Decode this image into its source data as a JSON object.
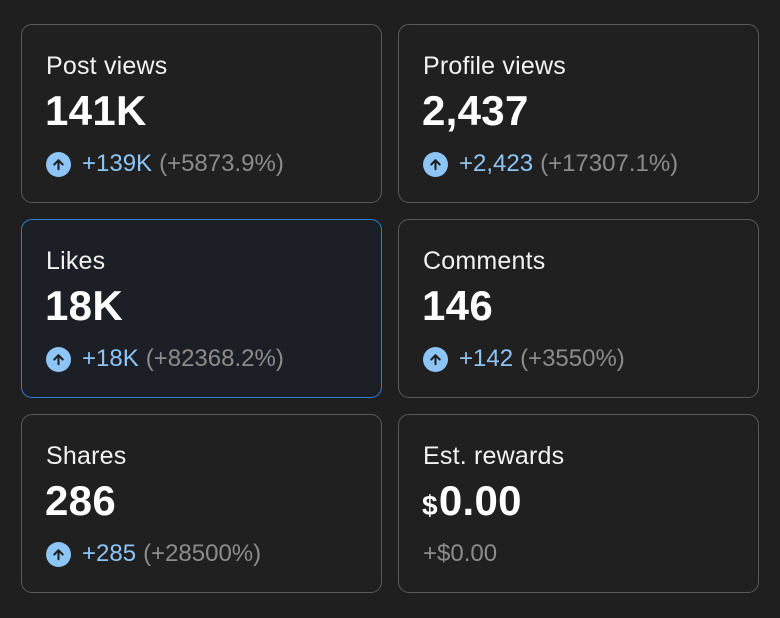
{
  "cards": [
    {
      "label": "Post views",
      "value": "141K",
      "delta": "+139K",
      "percent": "(+5873.9%)"
    },
    {
      "label": "Profile views",
      "value": "2,437",
      "delta": "+2,423",
      "percent": "(+17307.1%)"
    },
    {
      "label": "Likes",
      "value": "18K",
      "delta": "+18K",
      "percent": "(+82368.2%)",
      "selected": true
    },
    {
      "label": "Comments",
      "value": "146",
      "delta": "+142",
      "percent": "(+3550%)"
    },
    {
      "label": "Shares",
      "value": "286",
      "delta": "+285",
      "percent": "(+28500%)"
    },
    {
      "label": "Est. rewards",
      "currency": "$",
      "value": "0.00",
      "delta": "+$0.00"
    }
  ],
  "colors": {
    "accent": "#8ec5f7",
    "selected_border": "#2d7fd6",
    "muted": "#8c8c8c"
  },
  "icons": {
    "trend": "arrow-up-circle-icon"
  }
}
